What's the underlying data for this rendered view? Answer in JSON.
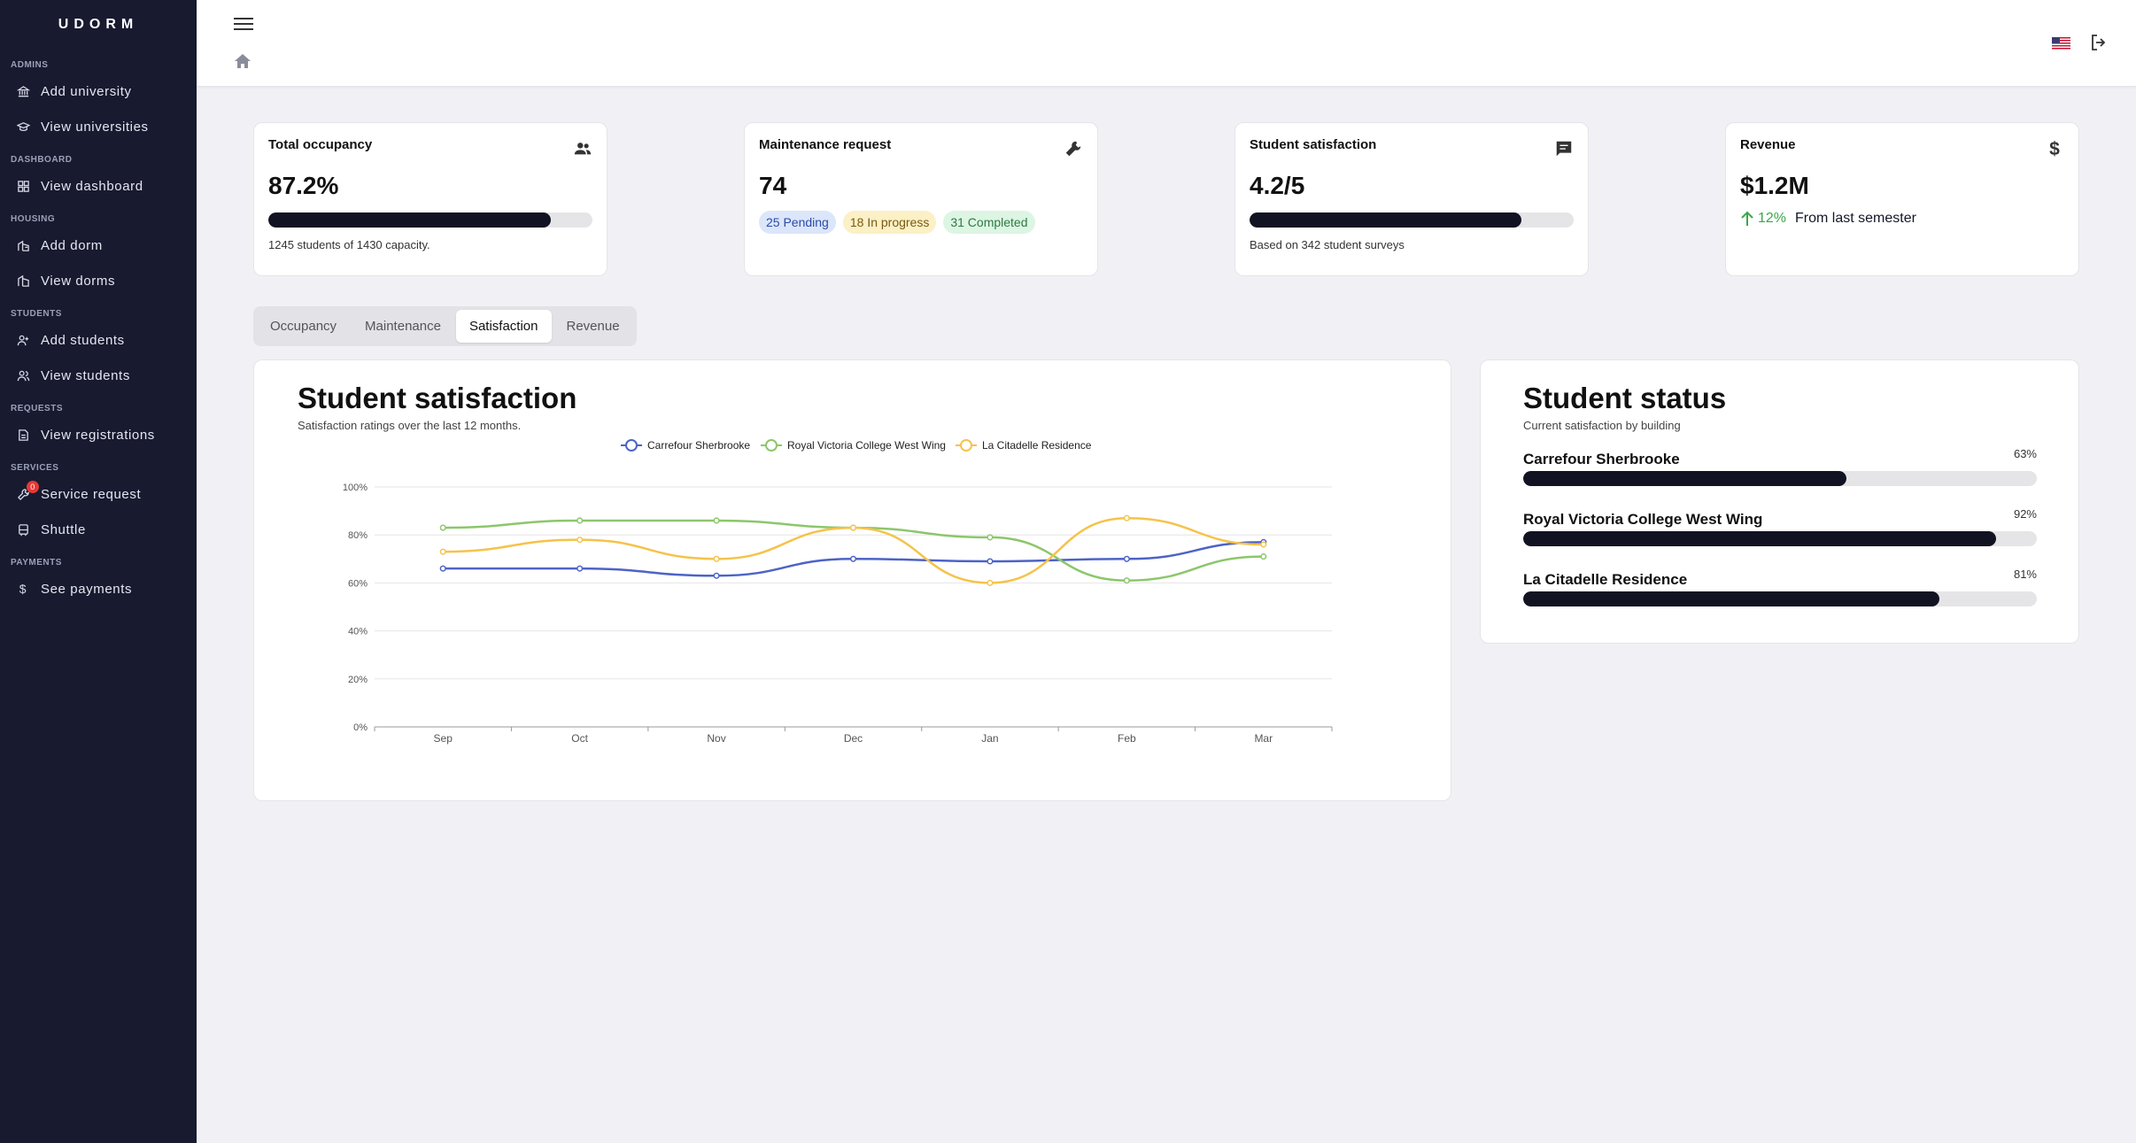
{
  "sidebar": {
    "brand": "UDORM",
    "sections": [
      {
        "heading": "ADMINS",
        "items": [
          {
            "label": "Add university",
            "icon": "bank-icon"
          },
          {
            "label": "View universities",
            "icon": "graduation-cap-icon"
          }
        ]
      },
      {
        "heading": "DASHBOARD",
        "items": [
          {
            "label": "View dashboard",
            "icon": "grid-icon"
          }
        ]
      },
      {
        "heading": "HOUSING",
        "items": [
          {
            "label": "Add dorm",
            "icon": "building-plus-icon"
          },
          {
            "label": "View dorms",
            "icon": "building-icon"
          }
        ]
      },
      {
        "heading": "STUDENTS",
        "items": [
          {
            "label": "Add students",
            "icon": "user-plus-icon"
          },
          {
            "label": "View students",
            "icon": "users-icon"
          }
        ]
      },
      {
        "heading": "REQUESTS",
        "items": [
          {
            "label": "View registrations",
            "icon": "document-icon"
          }
        ]
      },
      {
        "heading": "SERVICES",
        "items": [
          {
            "label": "Service request",
            "icon": "wrench-icon",
            "badge": "0"
          },
          {
            "label": "Shuttle",
            "icon": "bus-icon"
          }
        ]
      },
      {
        "heading": "PAYMENTS",
        "items": [
          {
            "label": "See payments",
            "icon": "dollar-icon"
          }
        ]
      }
    ]
  },
  "cards": {
    "occupancy": {
      "title": "Total occupancy",
      "value": "87.2%",
      "progress": 0.872,
      "note": "1245 students of 1430 capacity."
    },
    "maintenance": {
      "title": "Maintenance request",
      "value": "74",
      "pending": "25 Pending",
      "in_progress": "18 In progress",
      "completed": "31 Completed"
    },
    "satisfaction": {
      "title": "Student satisfaction",
      "value": "4.2/5",
      "progress": 0.84,
      "note": "Based on 342 student surveys"
    },
    "revenue": {
      "title": "Revenue",
      "value": "$1.2M",
      "trend_pct": "12%",
      "trend_text": "From last semester"
    }
  },
  "tabs": [
    {
      "label": "Occupancy",
      "active": false
    },
    {
      "label": "Maintenance",
      "active": false
    },
    {
      "label": "Satisfaction",
      "active": true
    },
    {
      "label": "Revenue",
      "active": false
    }
  ],
  "chart_panel": {
    "title": "Student satisfaction",
    "subtitle": "Satisfaction ratings over the last 12 months."
  },
  "chart_data": {
    "type": "line",
    "x": [
      "Sep",
      "Oct",
      "Nov",
      "Dec",
      "Jan",
      "Feb",
      "Mar"
    ],
    "ylim": [
      0,
      100
    ],
    "yticks": [
      "0%",
      "20%",
      "40%",
      "60%",
      "80%",
      "100%"
    ],
    "grid": true,
    "legend": "top",
    "series": [
      {
        "name": "Carrefour Sherbrooke",
        "color": "#4d63c6",
        "values": [
          66,
          66,
          63,
          70,
          69,
          70,
          77
        ]
      },
      {
        "name": "Royal Victoria College West Wing",
        "color": "#8cc66b",
        "values": [
          83,
          86,
          86,
          83,
          79,
          61,
          71
        ]
      },
      {
        "name": "La Citadelle Residence",
        "color": "#f5c34a",
        "values": [
          73,
          78,
          70,
          83,
          60,
          87,
          76
        ]
      }
    ]
  },
  "status_panel": {
    "title": "Student status",
    "subtitle": "Current satisfaction by building",
    "rows": [
      {
        "name": "Carrefour Sherbrooke",
        "pct": "63%",
        "value": 0.63
      },
      {
        "name": "Royal Victoria College West Wing",
        "pct": "92%",
        "value": 0.92
      },
      {
        "name": "La Citadelle Residence",
        "pct": "81%",
        "value": 0.81
      }
    ]
  }
}
